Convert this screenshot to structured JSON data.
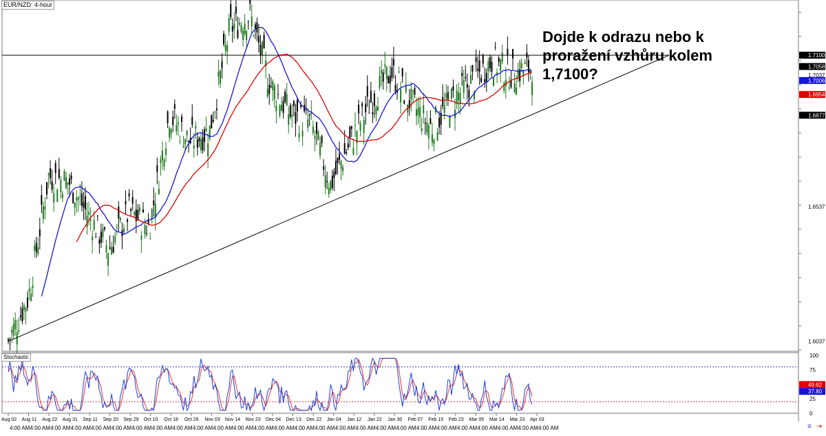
{
  "header": {
    "ticker_label": "EUR/NZD: 4-hour"
  },
  "annotation": {
    "text": "Dojde k odrazu nebo k proražení vzhůru kolem 1,7100?"
  },
  "indicator": {
    "title": "Stochastic"
  },
  "colors": {
    "bull_candle": "#1f7a1f",
    "bear_candle": "#000000",
    "sma_fast": "#1515d4",
    "sma_slow": "#e00000",
    "stoch_k": "#1d3fd6",
    "stoch_d": "#e03535",
    "level_line": "#000000",
    "trend_line": "#000000",
    "grid": "#c8c8c8"
  },
  "chart_data": [
    {
      "type": "candlestick",
      "pair": "EUR/NZD",
      "timeframe": "4-hour",
      "ylim": [
        1.6,
        1.73
      ],
      "y_ticks": [
        "1.6037",
        "1.6537",
        "1.6877"
      ],
      "price_tags": [
        {
          "label": "1.7100",
          "value": 1.71,
          "style": "black"
        },
        {
          "label": "1.7058",
          "value": 1.7058,
          "style": "black"
        },
        {
          "label": "1.7037",
          "value": 1.7037,
          "style": "plain"
        },
        {
          "label": "1.7006",
          "value": 1.7006,
          "style": "blue"
        },
        {
          "label": "1.6954",
          "value": 1.6954,
          "style": "red"
        },
        {
          "label": "1.6877",
          "value": 1.6877,
          "style": "black"
        }
      ],
      "date_labels": [
        "Aug 02",
        "Aug 11",
        "Aug 22",
        "Aug 31",
        "Sep 11",
        "Sep 20",
        "Sep 29",
        "Oct 10",
        "Oct 18",
        "Oct 26",
        "Nov 03",
        "Nov 14",
        "Nov 23",
        "Dec 04",
        "Dec 13",
        "Dec 22",
        "Jan 04",
        "Jan 12",
        "Jan 22",
        "Jan 30",
        "Feb 07",
        "Feb 15",
        "Feb 23",
        "Mar 05",
        "Mar 14",
        "Mar 23",
        "Apr 03"
      ],
      "time_label": "4:00 AM",
      "horizontal_level": 1.71,
      "trendline": [
        {
          "date": "Aug 02",
          "price": 1.6037
        },
        {
          "date": "Apr 03",
          "price": 1.71
        }
      ],
      "close_path": [
        {
          "date": "Aug 02",
          "price": 1.604
        },
        {
          "date": "Aug 11",
          "price": 1.62
        },
        {
          "date": "Aug 22",
          "price": 1.665
        },
        {
          "date": "Aug 31",
          "price": 1.663
        },
        {
          "date": "Sep 11",
          "price": 1.65
        },
        {
          "date": "Sep 20",
          "price": 1.638
        },
        {
          "date": "Sep 29",
          "price": 1.652
        },
        {
          "date": "Oct 10",
          "price": 1.646
        },
        {
          "date": "Oct 18",
          "price": 1.688
        },
        {
          "date": "Oct 26",
          "price": 1.678
        },
        {
          "date": "Nov 03",
          "price": 1.682
        },
        {
          "date": "Nov 14",
          "price": 1.72
        },
        {
          "date": "Nov 23",
          "price": 1.725
        },
        {
          "date": "Dec 04",
          "price": 1.699
        },
        {
          "date": "Dec 13",
          "price": 1.688
        },
        {
          "date": "Dec 22",
          "price": 1.685
        },
        {
          "date": "Jan 04",
          "price": 1.662
        },
        {
          "date": "Jan 12",
          "price": 1.678
        },
        {
          "date": "Jan 22",
          "price": 1.693
        },
        {
          "date": "Jan 30",
          "price": 1.704
        },
        {
          "date": "Feb 07",
          "price": 1.692
        },
        {
          "date": "Feb 15",
          "price": 1.683
        },
        {
          "date": "Feb 23",
          "price": 1.693
        },
        {
          "date": "Mar 05",
          "price": 1.7
        },
        {
          "date": "Mar 14",
          "price": 1.708
        },
        {
          "date": "Mar 23",
          "price": 1.703
        },
        {
          "date": "Apr 03",
          "price": 1.7058
        }
      ]
    },
    {
      "type": "line",
      "name": "Stochastic",
      "ylim": [
        0,
        100
      ],
      "y_ticks": [
        0,
        25,
        50,
        75,
        100
      ],
      "levels": [
        20,
        80
      ],
      "tags": [
        {
          "label": "49.62",
          "value": 49.62,
          "style": "red"
        },
        {
          "label": "37.80",
          "value": 37.8,
          "style": "blue"
        }
      ]
    }
  ]
}
